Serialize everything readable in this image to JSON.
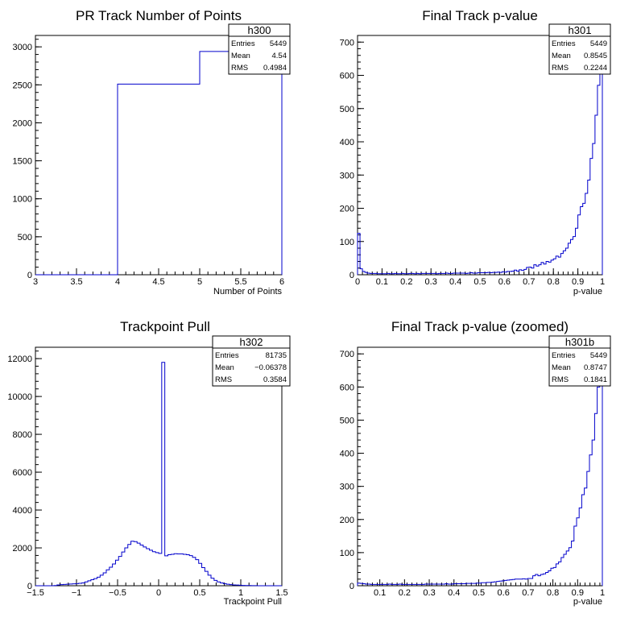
{
  "colors": {
    "histogram_line": "#0000cc",
    "frame": "#000000",
    "background": "#ffffff"
  },
  "chart_data": [
    {
      "type": "histogram",
      "title": "PR Track Number of Points",
      "xlabel": "Number of Points",
      "ylabel": "",
      "xlim": [
        3,
        6
      ],
      "ylim": [
        0,
        3150
      ],
      "x_ticks": [
        "3",
        "3.5",
        "4",
        "4.5",
        "5",
        "5.5",
        "6"
      ],
      "y_ticks": [
        "0",
        "500",
        "1000",
        "1500",
        "2000",
        "2500",
        "3000"
      ],
      "bin_edges": [
        3,
        4,
        5,
        6
      ],
      "bin_counts": [
        0,
        2510,
        2939
      ],
      "stats": {
        "name": "h300",
        "rows": [
          [
            "Entries",
            "5449"
          ],
          [
            "Mean",
            "4.54"
          ],
          [
            "RMS",
            "0.4984"
          ]
        ]
      }
    },
    {
      "type": "histogram",
      "title": "Final Track p-value",
      "xlabel": "p-value",
      "ylabel": "",
      "xlim": [
        0,
        1
      ],
      "ylim": [
        0,
        720
      ],
      "x_ticks": [
        "0",
        "0.1",
        "0.2",
        "0.3",
        "0.4",
        "0.5",
        "0.6",
        "0.7",
        "0.8",
        "0.9",
        "1"
      ],
      "y_ticks": [
        "0",
        "100",
        "200",
        "300",
        "400",
        "500",
        "600",
        "700"
      ],
      "bin_edges_range": [
        0,
        1
      ],
      "bin_counts": [
        125,
        18,
        10,
        7,
        5,
        4,
        4,
        4,
        3,
        3,
        3,
        3,
        4,
        3,
        3,
        4,
        3,
        3,
        4,
        3,
        3,
        4,
        4,
        3,
        4,
        3,
        4,
        4,
        4,
        4,
        4,
        4,
        3,
        4,
        4,
        4,
        5,
        4,
        4,
        5,
        5,
        5,
        5,
        5,
        4,
        5,
        6,
        5,
        5,
        6,
        6,
        6,
        6,
        7,
        6,
        7,
        7,
        8,
        7,
        9,
        8,
        10,
        10,
        11,
        14,
        11,
        15,
        13,
        16,
        22,
        23,
        20,
        30,
        26,
        30,
        37,
        32,
        40,
        38,
        44,
        48,
        56,
        53,
        64,
        72,
        80,
        95,
        106,
        115,
        140,
        180,
        205,
        215,
        245,
        285,
        350,
        395,
        480,
        570,
        760
      ],
      "stats": {
        "name": "h301",
        "rows": [
          [
            "Entries",
            "5449"
          ],
          [
            "Mean",
            "0.8545"
          ],
          [
            "RMS",
            "0.2244"
          ]
        ]
      }
    },
    {
      "type": "histogram",
      "title": "Trackpoint Pull",
      "xlabel": "Trackpoint Pull",
      "ylabel": "",
      "xlim": [
        -1.5,
        1.5
      ],
      "ylim": [
        0,
        12600
      ],
      "x_ticks": [
        "−1.5",
        "−1",
        "−0.5",
        "0",
        "0.5",
        "1",
        "1.5"
      ],
      "y_ticks": [
        "0",
        "2000",
        "4000",
        "6000",
        "8000",
        "10000",
        "12000"
      ],
      "bin_edges_range": [
        -1.5,
        1.5
      ],
      "bin_counts": [
        0,
        0,
        0,
        0,
        0,
        0,
        10,
        40,
        60,
        70,
        80,
        90,
        100,
        110,
        130,
        150,
        200,
        260,
        320,
        380,
        450,
        560,
        680,
        840,
        980,
        1150,
        1350,
        1550,
        1780,
        2000,
        2180,
        2350,
        2330,
        2250,
        2150,
        2050,
        1960,
        1880,
        1800,
        1750,
        1710,
        11800,
        1580,
        1640,
        1660,
        1690,
        1680,
        1680,
        1660,
        1640,
        1590,
        1500,
        1380,
        1180,
        960,
        760,
        560,
        400,
        280,
        200,
        150,
        110,
        80,
        60,
        45,
        35,
        25,
        18,
        12,
        8,
        5,
        3,
        2,
        1,
        0,
        0,
        0,
        0,
        0,
        0
      ],
      "stats": {
        "name": "h302",
        "rows": [
          [
            "Entries",
            "81735"
          ],
          [
            "Mean",
            "−0.06378"
          ],
          [
            "RMS",
            "0.3584"
          ]
        ]
      }
    },
    {
      "type": "histogram",
      "title": "Final Track p-value (zoomed)",
      "xlabel": "p-value",
      "ylabel": "",
      "xlim": [
        0.01,
        1
      ],
      "ylim": [
        0,
        720
      ],
      "x_ticks": [
        "0.1",
        "0.2",
        "0.3",
        "0.4",
        "0.5",
        "0.6",
        "0.7",
        "0.8",
        "0.9",
        "1"
      ],
      "y_ticks": [
        "0",
        "100",
        "200",
        "300",
        "400",
        "500",
        "600",
        "700"
      ],
      "bin_edges_range": [
        0.01,
        1
      ],
      "bin_counts": [
        8,
        7,
        6,
        5,
        5,
        4,
        4,
        4,
        4,
        4,
        4,
        4,
        5,
        4,
        4,
        4,
        5,
        4,
        4,
        4,
        4,
        4,
        4,
        4,
        4,
        4,
        5,
        5,
        5,
        5,
        5,
        5,
        5,
        5,
        6,
        5,
        5,
        6,
        6,
        6,
        6,
        6,
        7,
        7,
        7,
        7,
        8,
        8,
        9,
        9,
        10,
        10,
        11,
        12,
        13,
        14,
        15,
        16,
        17,
        18,
        19,
        20,
        20,
        20,
        21,
        20,
        22,
        22,
        30,
        34,
        30,
        34,
        36,
        40,
        45,
        53,
        55,
        66,
        72,
        85,
        95,
        105,
        115,
        135,
        180,
        205,
        235,
        275,
        295,
        345,
        395,
        440,
        520,
        600,
        730
      ],
      "stats": {
        "name": "h301b",
        "rows": [
          [
            "Entries",
            "5449"
          ],
          [
            "Mean",
            "0.8747"
          ],
          [
            "RMS",
            "0.1841"
          ]
        ]
      }
    }
  ]
}
